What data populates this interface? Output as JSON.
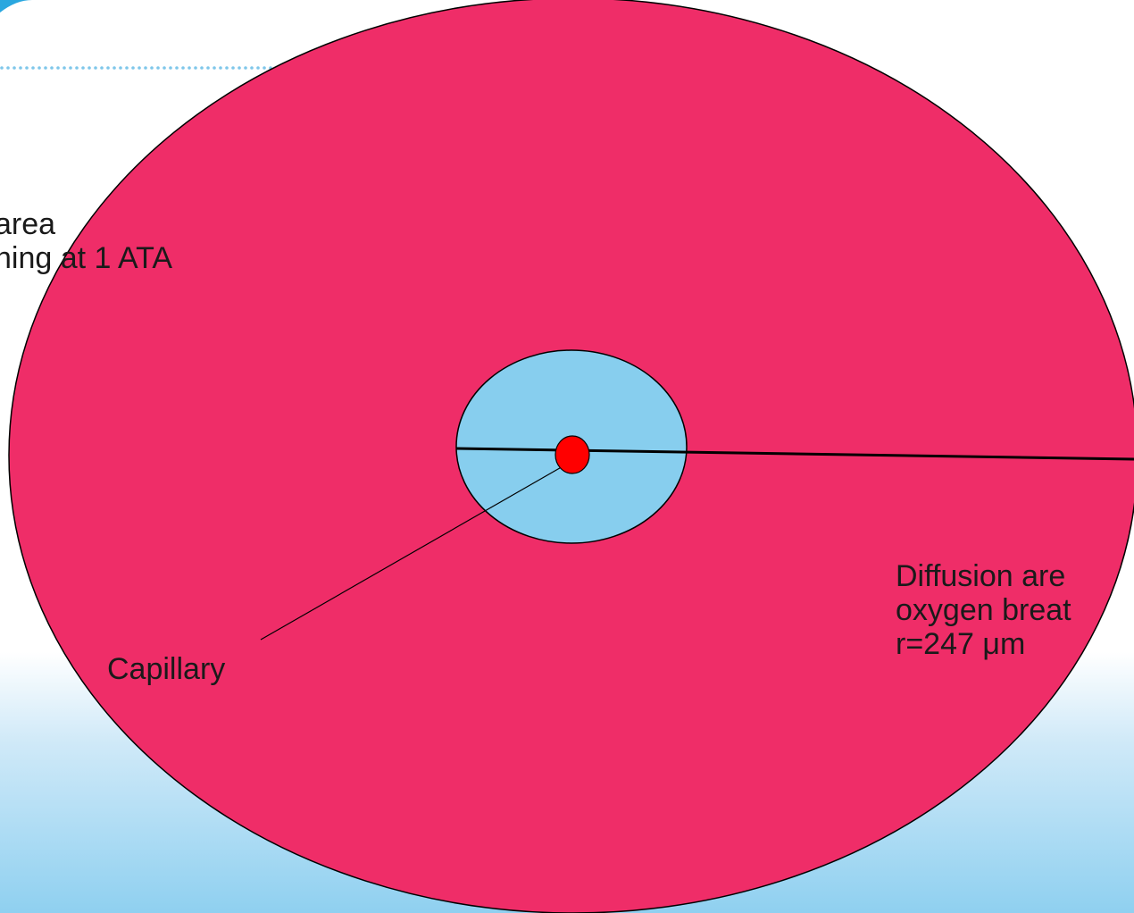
{
  "labels": {
    "left_line1": "area",
    "left_line2": "hing at 1 ATA",
    "capillary": "Capillary",
    "right_line1": "Diffusion are",
    "right_line2": "oxygen breat",
    "right_line3": "r=247 μm"
  },
  "colors": {
    "outer_area": "#ef2d68",
    "inner_area": "#87ceee",
    "capillary": "#ff0000",
    "accent_dots": "#7fc7ea",
    "corner_accent": "#2aa7df",
    "background_bottom": "#8fd0f0"
  }
}
